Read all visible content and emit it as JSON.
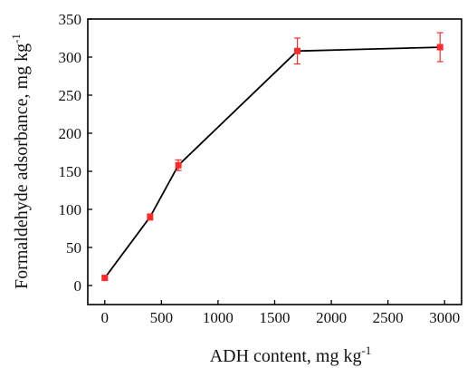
{
  "chart_data": {
    "type": "line",
    "xlabel": "ADH content, mg kg",
    "xlabel_sup": "-1",
    "ylabel": "Formaldehyde adsorbance, mg kg",
    "ylabel_sup": "-1",
    "xlim": [
      -150,
      3150
    ],
    "ylim": [
      -25,
      350
    ],
    "xticks": [
      0,
      500,
      1000,
      1500,
      2000,
      2500,
      3000
    ],
    "yticks": [
      0,
      50,
      100,
      150,
      200,
      250,
      300,
      350
    ],
    "grid": false,
    "legend": "none",
    "series": [
      {
        "color": "#ff2a2a",
        "line_color": "#000000",
        "marker": "square",
        "x": [
          0,
          400,
          650,
          1700,
          2960
        ],
        "y": [
          10,
          90,
          158,
          308,
          313
        ],
        "error": [
          2,
          4,
          7,
          17,
          19
        ]
      }
    ]
  }
}
